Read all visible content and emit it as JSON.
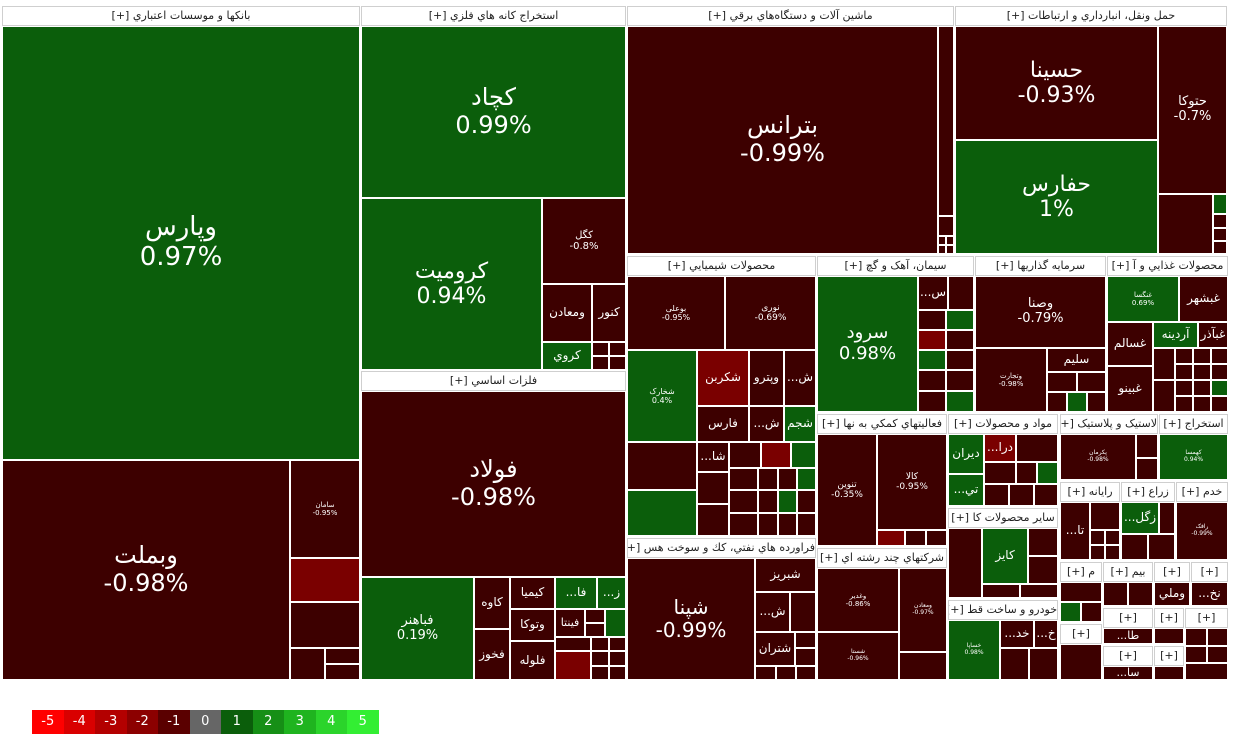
{
  "sectors": [
    {
      "label": "بانکها و موسسات اعتباري [+]"
    },
    {
      "label": "استخراج کانه هاي فلزي [+]"
    },
    {
      "label": "ماشين آلات و دستگاه‌هاي برقي [+]"
    },
    {
      "label": "حمل ونقل، انبارداري و ارتباطات [+]"
    },
    {
      "label": "محصولات شيميايي [+]"
    },
    {
      "label": "سيمان، آهک و گچ [+]"
    },
    {
      "label": "سرمايه گذاريها [+]"
    },
    {
      "label": "محصولات غذايي و آ [+]"
    },
    {
      "label": "فلزات اساسي [+]"
    },
    {
      "label": "فعاليتهاي کمکي به نها [+]"
    },
    {
      "label": "مواد و محصولات [+]"
    },
    {
      "label": "لاستيک و پلاستيک [+]"
    },
    {
      "label": "استخراج [+]"
    },
    {
      "label": "فراورده هاي نفتي، كك و سوخت هس [+]"
    },
    {
      "label": "شرکتهاي چند رشته اي [+]"
    },
    {
      "label": "ساير محصولات کا [+]"
    },
    {
      "label": "خودرو و ساخت قط [+]"
    },
    {
      "label": "رايانه [+]"
    },
    {
      "label": "زراع [+]"
    },
    {
      "label": "خدم [+]"
    },
    {
      "label": "بيم [+]"
    },
    {
      "label": "م [+]"
    },
    {
      "label": "[+]"
    }
  ],
  "tiles": {
    "vapars": {
      "name": "وپارس",
      "pct": "0.97%"
    },
    "vabmellat": {
      "name": "وبملت",
      "pct": "-0.98%"
    },
    "saman": {
      "name": "سامان",
      "pct": "-0.95%"
    },
    "kechad": {
      "name": "کچاد",
      "pct": "0.99%"
    },
    "kromit": {
      "name": "کرومیت",
      "pct": "0.94%"
    },
    "kegol": {
      "name": "کگل",
      "pct": "-0.8%"
    },
    "kenur": {
      "name": "کنور"
    },
    "vamaaden": {
      "name": "ومعادن"
    },
    "karvi": {
      "name": "کروي"
    },
    "fulad": {
      "name": "فولاد",
      "pct": "-0.98%"
    },
    "fbahonar": {
      "name": "فباهنر",
      "pct": "0.19%"
    },
    "kaveh": {
      "name": "کاوه"
    },
    "fakhuz": {
      "name": "فخوز"
    },
    "kimia": {
      "name": "كيميا"
    },
    "vatuka": {
      "name": "وتوکا"
    },
    "falulah": {
      "name": "فلوله"
    },
    "fintta": {
      "name": "فینتا"
    },
    "fa": {
      "name": "...فا"
    },
    "z": {
      "name": "...ز"
    },
    "betrans": {
      "name": "بترانس",
      "pct": "-0.99%"
    },
    "hesina": {
      "name": "حسینا",
      "pct": "-0.93%"
    },
    "hafars": {
      "name": "حفارس",
      "pct": "1%"
    },
    "hetuka": {
      "name": "حتوکا",
      "pct": "-0.7%"
    },
    "buali": {
      "name": "بوعلی",
      "pct": "-0.95%"
    },
    "nuri": {
      "name": "نوری",
      "pct": "-0.69%"
    },
    "shekharak": {
      "name": "شخارک",
      "pct": "0.4%"
    },
    "shekarbon": {
      "name": "شکربن"
    },
    "vapetro": {
      "name": "وپترو"
    },
    "sh1": {
      "name": "...ش"
    },
    "farsc": {
      "name": "فارس"
    },
    "shasham": {
      "name": "شجم"
    },
    "sh2": {
      "name": "...ش"
    },
    "shaa": {
      "name": "...شا"
    },
    "sorud": {
      "name": "سرود",
      "pct": "0.98%"
    },
    "sa": {
      "name": "...س"
    },
    "vasena": {
      "name": "وصنا",
      "pct": "-0.79%"
    },
    "salim": {
      "name": "سلیم"
    },
    "vatejarat": {
      "name": "وتجارت",
      "pct": "-0.98%"
    },
    "ghabshahr": {
      "name": "غبشهر"
    },
    "ghenakesa": {
      "name": "غنگسا",
      "pct": "0.69%"
    },
    "ghadir": {
      "name": "غبآذر"
    },
    "aredina": {
      "name": "آردينه"
    },
    "ghesalam": {
      "name": "غسالم"
    },
    "ghebino": {
      "name": "غبینو"
    },
    "tavin": {
      "name": "تنوین",
      "pct": "-0.35%"
    },
    "kala": {
      "name": "کالا",
      "pct": "-0.95%"
    },
    "diran": {
      "name": "دیران"
    },
    "dara": {
      "name": "...درا"
    },
    "ti": {
      "name": "...تي"
    },
    "pakerman": {
      "name": "پکرمان",
      "pct": "-0.98%"
    },
    "kehmesa": {
      "name": "کهمسا",
      "pct": "0.94%"
    },
    "shepna": {
      "name": "شپنا",
      "pct": "-0.99%"
    },
    "shebriz": {
      "name": "شبریز"
    },
    "shetran": {
      "name": "شتران"
    },
    "vaghadir": {
      "name": "وغدیر",
      "pct": "-0.86%"
    },
    "vamaadir": {
      "name": "ومعادن",
      "pct": "-0.97%"
    },
    "shesta": {
      "name": "شستا",
      "pct": "-0.96%"
    },
    "kaiz": {
      "name": "کایز"
    },
    "khasapa": {
      "name": "خساپا",
      "pct": "0.98%"
    },
    "kh1": {
      "name": "...خد"
    },
    "kh2": {
      "name": "...خ"
    },
    "ta": {
      "name": "...تا"
    },
    "zagol": {
      "name": "...زگل"
    },
    "rafak": {
      "name": "رافک",
      "pct": "-0.99%"
    },
    "vamoli": {
      "name": "وملي"
    },
    "nakh": {
      "name": "...نخ"
    },
    "taat": {
      "name": "...طا"
    },
    "sa2": {
      "name": "...سا"
    }
  },
  "legend": [
    {
      "label": "-5",
      "color": "#ff0000"
    },
    {
      "label": "-4",
      "color": "#d90000"
    },
    {
      "label": "-3",
      "color": "#b30000"
    },
    {
      "label": "-2",
      "color": "#8c0000"
    },
    {
      "label": "-1",
      "color": "#5a0000"
    },
    {
      "label": "0",
      "color": "#666666"
    },
    {
      "label": "1",
      "color": "#0b5e0b"
    },
    {
      "label": "2",
      "color": "#168f16"
    },
    {
      "label": "3",
      "color": "#1fb41f"
    },
    {
      "label": "4",
      "color": "#2bd42b"
    },
    {
      "label": "5",
      "color": "#33ee33"
    }
  ]
}
